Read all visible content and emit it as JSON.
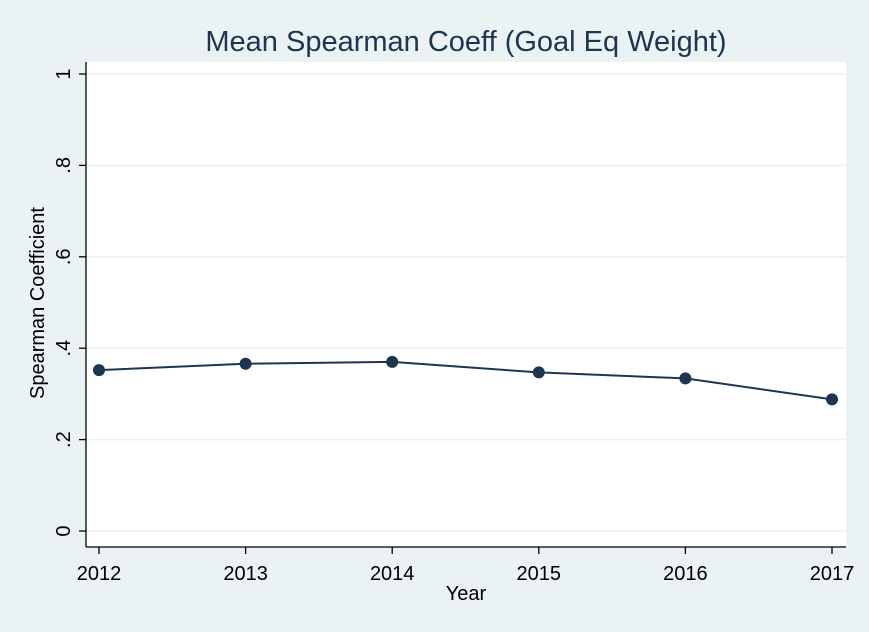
{
  "chart_data": {
    "type": "line",
    "title": "Mean Spearman Coeff (Goal Eq Weight)",
    "xlabel": "Year",
    "ylabel": "Spearman Coefficient",
    "x": [
      2012,
      2013,
      2014,
      2015,
      2016,
      2017
    ],
    "x_tick_labels": [
      "2012",
      "2013",
      "2014",
      "2015",
      "2016",
      "2017"
    ],
    "series": [
      {
        "values": [
          0.352,
          0.366,
          0.37,
          0.347,
          0.334,
          0.288
        ]
      }
    ],
    "ylim": [
      0,
      1
    ],
    "y_ticks": [
      0,
      0.2,
      0.4,
      0.6,
      0.8,
      1
    ],
    "y_tick_labels": [
      "0",
      ".2",
      ".4",
      ".6",
      ".8",
      "1"
    ],
    "grid": true,
    "legend": "none",
    "colors": {
      "background": "#eaf2f3",
      "plot_area": "#ffffff",
      "series": "#1e3552",
      "title": "#1e3552"
    }
  }
}
